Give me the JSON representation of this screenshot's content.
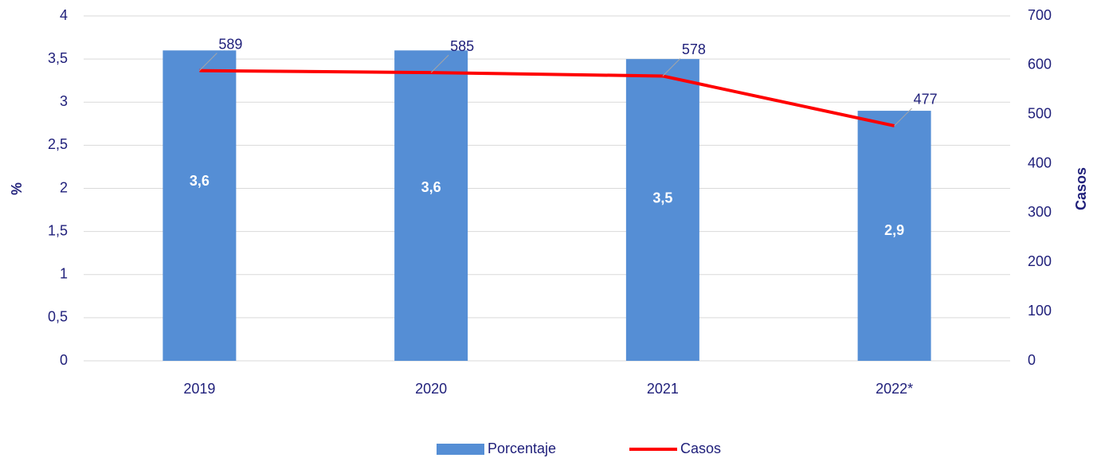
{
  "chart_data": {
    "type": "bar",
    "categories": [
      "2019",
      "2020",
      "2021",
      "2022*"
    ],
    "series": [
      {
        "name": "Porcentaje",
        "type": "bar",
        "color": "#558ed5",
        "values": [
          3.6,
          3.6,
          3.5,
          2.9
        ],
        "value_labels": [
          "3,6",
          "3,6",
          "3,5",
          "2,9"
        ]
      },
      {
        "name": "Casos",
        "type": "line",
        "axis": "y2",
        "color": "#ff0000",
        "values": [
          589,
          585,
          578,
          477
        ]
      }
    ],
    "ylabel": "%",
    "y2label": "Casos",
    "ylim": [
      0,
      4
    ],
    "yticks": [
      0,
      {
        "value": 0.5,
        "label": "0,5"
      },
      1,
      {
        "value": 1.5,
        "label": "1,5"
      },
      2,
      {
        "value": 2.5,
        "label": "2,5"
      },
      3,
      {
        "value": 3.5,
        "label": "3,5"
      },
      4
    ],
    "y2lim": [
      0,
      700
    ],
    "y2ticks": [
      0,
      100,
      200,
      300,
      400,
      500,
      600,
      700
    ],
    "grid": true,
    "legend": "bottom"
  }
}
